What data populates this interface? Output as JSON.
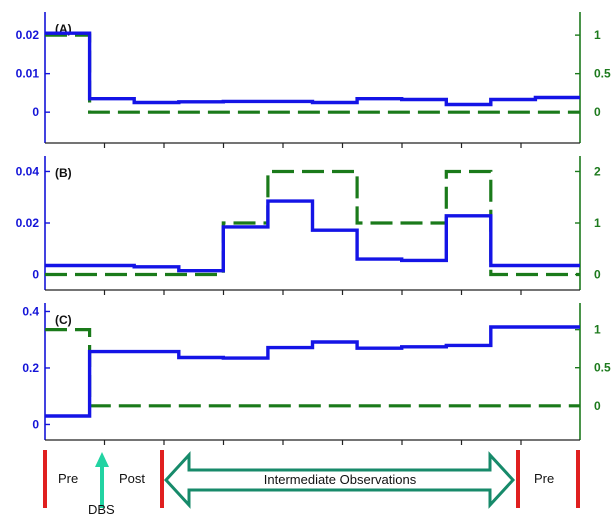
{
  "colors": {
    "left_series": "#1414e6",
    "right_series": "#1a7a1a",
    "left_axis": "#1414d8",
    "right_axis": "#1d7a1d",
    "marker": "#e01f1f",
    "arrow": "#178a6a",
    "dbs_arrow": "#22d3a2"
  },
  "chart_data": [
    {
      "type": "line",
      "panel_label": "(A)",
      "x_segments": 11,
      "series": [
        {
          "axis": "left",
          "style": "solid",
          "values": [
            0.0205,
            0.0035,
            0.0025,
            0.0027,
            0.0028,
            0.0028,
            0.0025,
            0.0035,
            0.0033,
            0.002,
            0.0033,
            0.0038
          ]
        },
        {
          "axis": "right",
          "style": "dashed",
          "values": [
            1.0,
            0.0,
            0.0,
            0.0,
            0.0,
            0.0,
            0.0,
            0.0,
            0.0,
            0.0,
            0.0,
            0.0
          ]
        }
      ],
      "y_left": {
        "ylim": [
          -0.008,
          0.026
        ],
        "ticks": [
          0,
          0.01,
          0.02
        ],
        "tick_labels": [
          "0",
          "0.01",
          "0.02"
        ]
      },
      "y_right": {
        "ylim": [
          -0.4,
          1.3
        ],
        "ticks": [
          0,
          0.5,
          1
        ],
        "tick_labels": [
          "0",
          "0.5",
          "1"
        ]
      }
    },
    {
      "type": "line",
      "panel_label": "(B)",
      "x_segments": 11,
      "series": [
        {
          "axis": "left",
          "style": "solid",
          "values": [
            0.0035,
            0.0035,
            0.003,
            0.0015,
            0.0185,
            0.0285,
            0.0172,
            0.006,
            0.0055,
            0.0228,
            0.0035,
            0.0035
          ]
        },
        {
          "axis": "right",
          "style": "dashed",
          "values": [
            0.0,
            0.0,
            0.0,
            0.0,
            1.0,
            2.0,
            2.0,
            1.0,
            1.0,
            2.0,
            0.0,
            0.0
          ]
        }
      ],
      "y_left": {
        "ylim": [
          -0.006,
          0.046
        ],
        "ticks": [
          0,
          0.02,
          0.04
        ],
        "tick_labels": [
          "0",
          "0.02",
          "0.04"
        ]
      },
      "y_right": {
        "ylim": [
          -0.3,
          2.3
        ],
        "ticks": [
          0,
          1,
          2
        ],
        "tick_labels": [
          "0",
          "1",
          "2"
        ]
      }
    },
    {
      "type": "line",
      "panel_label": "(C)",
      "x_segments": 11,
      "series": [
        {
          "axis": "left",
          "style": "solid",
          "values": [
            0.03,
            0.258,
            0.258,
            0.237,
            0.235,
            0.272,
            0.292,
            0.27,
            0.275,
            0.28,
            0.345,
            0.345
          ]
        },
        {
          "axis": "right",
          "style": "dashed",
          "values": [
            1.0,
            0.0,
            0.0,
            0.0,
            0.0,
            0.0,
            0.0,
            0.0,
            0.0,
            0.0,
            0.0,
            0.0
          ]
        }
      ],
      "y_left": {
        "ylim": [
          -0.055,
          0.43
        ],
        "ticks": [
          0,
          0.2,
          0.4
        ],
        "tick_labels": [
          "0",
          "0.2",
          "0.4"
        ]
      },
      "y_right": {
        "ylim": [
          -0.45,
          1.35
        ],
        "ticks": [
          0,
          0.5,
          1
        ],
        "tick_labels": [
          "0",
          "0.5",
          "1"
        ]
      }
    }
  ],
  "annotations": {
    "pre_left": "Pre",
    "dbs": "DBS",
    "post": "Post",
    "intermediate": "Intermediate Observations",
    "pre_right": "Pre"
  }
}
